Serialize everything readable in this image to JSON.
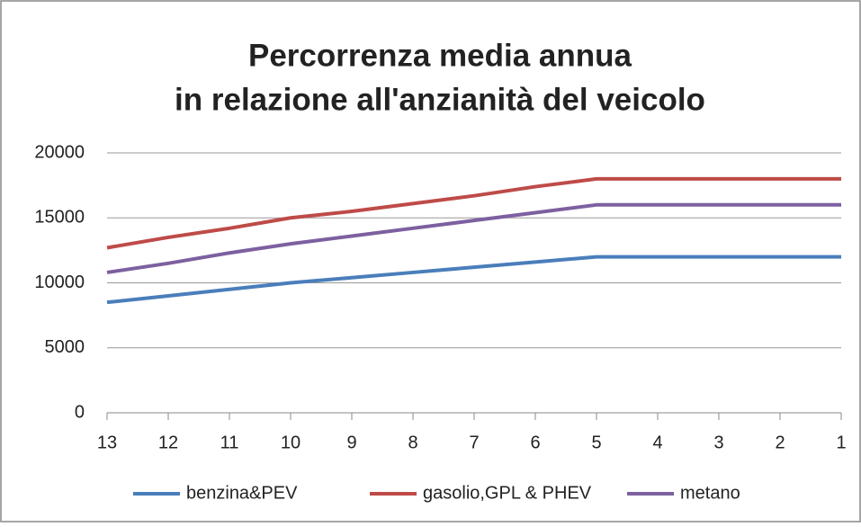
{
  "chart_data": {
    "type": "line",
    "title": [
      "Percorrenza  media annua",
      "in relazione all'anzianità del veicolo"
    ],
    "categories": [
      "13",
      "12",
      "11",
      "10",
      "9",
      "8",
      "7",
      "6",
      "5",
      "4",
      "3",
      "2",
      "1"
    ],
    "series": [
      {
        "name": "benzina&PEV",
        "color": "#4a7ebb",
        "values": [
          8500,
          9000,
          9500,
          10000,
          10400,
          10800,
          11200,
          11600,
          12000,
          12000,
          12000,
          12000,
          12000
        ]
      },
      {
        "name": "gasolio,GPL & PHEV",
        "color": "#be4b48",
        "values": [
          12700,
          13500,
          14200,
          15000,
          15500,
          16100,
          16700,
          17400,
          18000,
          18000,
          18000,
          18000,
          18000
        ]
      },
      {
        "name": "metano",
        "color": "#7d60a0",
        "values": [
          10800,
          11500,
          12300,
          13000,
          13600,
          14200,
          14800,
          15400,
          16000,
          16000,
          16000,
          16000,
          16000
        ]
      }
    ],
    "ylim": [
      0,
      20000
    ],
    "yticks": [
      0,
      5000,
      10000,
      15000,
      20000
    ],
    "grid": true,
    "legend": "bottom"
  }
}
